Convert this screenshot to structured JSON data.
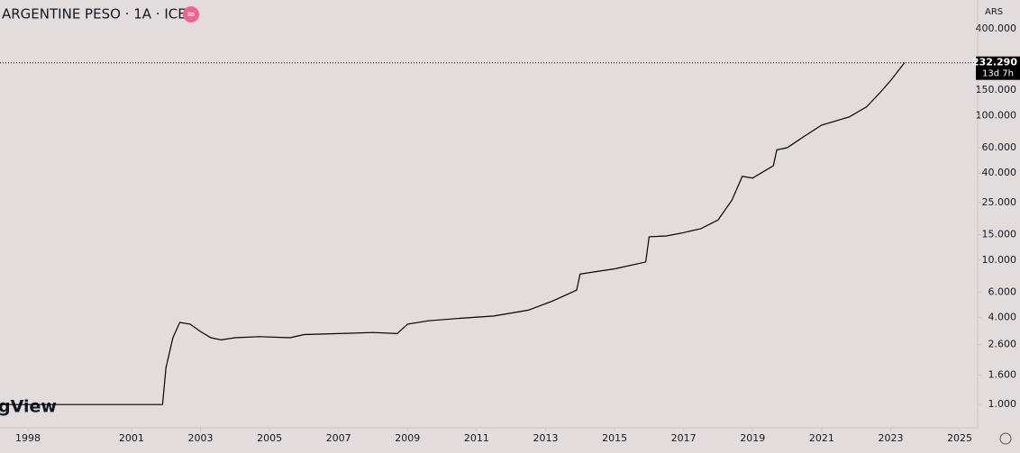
{
  "chart_data": {
    "type": "line",
    "title": "ARGENTINE PESO · 1A · ICE",
    "badge": "≈",
    "currency": "ARS",
    "watermark": "gView",
    "log_scale": true,
    "color": "#000000",
    "x": [
      1997.2,
      2001.9,
      2002.0,
      2002.2,
      2002.4,
      2002.7,
      2003.0,
      2003.3,
      2003.6,
      2004.0,
      2004.7,
      2005.6,
      2006.0,
      2007.0,
      2008.0,
      2008.7,
      2009.0,
      2009.6,
      2010.5,
      2011.5,
      2012.5,
      2013.2,
      2013.9,
      2014.0,
      2015.0,
      2015.9,
      2016.0,
      2016.5,
      2017.0,
      2017.5,
      2018.0,
      2018.4,
      2018.7,
      2019.0,
      2019.6,
      2019.7,
      2020.0,
      2020.5,
      2021.0,
      2021.8,
      2022.3,
      2022.7,
      2023.0,
      2023.4
    ],
    "values": [
      1.0,
      1.0,
      1.8,
      2.9,
      3.7,
      3.6,
      3.2,
      2.9,
      2.8,
      2.9,
      2.95,
      2.9,
      3.05,
      3.1,
      3.15,
      3.1,
      3.6,
      3.8,
      3.95,
      4.1,
      4.5,
      5.2,
      6.2,
      8.0,
      8.7,
      9.7,
      14.5,
      14.7,
      15.5,
      16.5,
      19,
      26,
      38,
      37,
      45,
      58,
      60,
      72,
      86,
      98,
      115,
      145,
      175,
      232.29
    ],
    "last_price_label": "232.290",
    "last_price_countdown": "13d 7h",
    "xlim": [
      1997.19,
      2025.39
    ],
    "xticks": [
      1998,
      2001,
      2003,
      2005,
      2007,
      2009,
      2011,
      2013,
      2015,
      2017,
      2019,
      2021,
      2023,
      2025
    ],
    "ylim": [
      0.69,
      632
    ],
    "yticks": [
      {
        "value": 1,
        "label": "1.000"
      },
      {
        "value": 1.6,
        "label": "1.600"
      },
      {
        "value": 2.6,
        "label": "2.600"
      },
      {
        "value": 4,
        "label": "4.000"
      },
      {
        "value": 6,
        "label": "6.000"
      },
      {
        "value": 10,
        "label": "10.000"
      },
      {
        "value": 15,
        "label": "15.000"
      },
      {
        "value": 25,
        "label": "25.000"
      },
      {
        "value": 40,
        "label": "40.000"
      },
      {
        "value": 60,
        "label": "60.000"
      },
      {
        "value": 100,
        "label": "100.000"
      },
      {
        "value": 150,
        "label": "150.000"
      },
      {
        "value": 400,
        "label": "400.000"
      }
    ]
  }
}
